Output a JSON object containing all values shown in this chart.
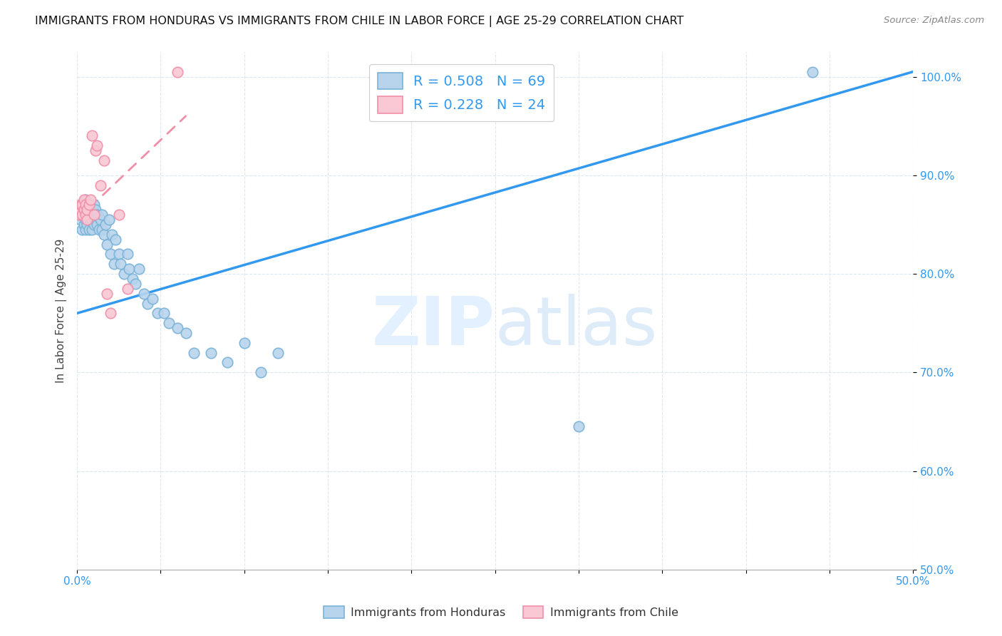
{
  "title": "IMMIGRANTS FROM HONDURAS VS IMMIGRANTS FROM CHILE IN LABOR FORCE | AGE 25-29 CORRELATION CHART",
  "source": "Source: ZipAtlas.com",
  "ylabel_label": "In Labor Force | Age 25-29",
  "xmin": 0.0,
  "xmax": 0.5,
  "ymin": 0.5,
  "ymax": 1.025,
  "blue_color": "#b8d4ec",
  "blue_edge": "#7ab3d8",
  "pink_color": "#f9c8d4",
  "pink_edge": "#f090a8",
  "trendline_blue": "#3399ee",
  "trendline_pink": "#f090a8",
  "watermark_color": "#ddeeff",
  "honduras_x": [
    0.001,
    0.002,
    0.002,
    0.003,
    0.003,
    0.003,
    0.004,
    0.004,
    0.004,
    0.005,
    0.005,
    0.005,
    0.005,
    0.006,
    0.006,
    0.006,
    0.007,
    0.007,
    0.007,
    0.007,
    0.008,
    0.008,
    0.009,
    0.009,
    0.009,
    0.01,
    0.01,
    0.01,
    0.011,
    0.011,
    0.012,
    0.012,
    0.013,
    0.013,
    0.014,
    0.015,
    0.015,
    0.016,
    0.017,
    0.018,
    0.019,
    0.02,
    0.021,
    0.022,
    0.023,
    0.025,
    0.026,
    0.028,
    0.03,
    0.031,
    0.033,
    0.035,
    0.037,
    0.04,
    0.042,
    0.045,
    0.048,
    0.052,
    0.055,
    0.06,
    0.065,
    0.07,
    0.08,
    0.09,
    0.1,
    0.11,
    0.12,
    0.3,
    0.44
  ],
  "honduras_y": [
    0.86,
    0.855,
    0.87,
    0.845,
    0.86,
    0.865,
    0.85,
    0.86,
    0.87,
    0.845,
    0.855,
    0.865,
    0.875,
    0.85,
    0.86,
    0.87,
    0.845,
    0.855,
    0.86,
    0.87,
    0.855,
    0.865,
    0.845,
    0.855,
    0.865,
    0.85,
    0.86,
    0.87,
    0.855,
    0.865,
    0.85,
    0.86,
    0.845,
    0.858,
    0.855,
    0.845,
    0.86,
    0.84,
    0.85,
    0.83,
    0.855,
    0.82,
    0.84,
    0.81,
    0.835,
    0.82,
    0.81,
    0.8,
    0.82,
    0.805,
    0.795,
    0.79,
    0.805,
    0.78,
    0.77,
    0.775,
    0.76,
    0.76,
    0.75,
    0.745,
    0.74,
    0.72,
    0.72,
    0.71,
    0.73,
    0.7,
    0.72,
    0.645,
    1.005
  ],
  "chile_x": [
    0.001,
    0.002,
    0.002,
    0.003,
    0.003,
    0.004,
    0.004,
    0.005,
    0.005,
    0.006,
    0.006,
    0.007,
    0.008,
    0.009,
    0.01,
    0.011,
    0.012,
    0.014,
    0.016,
    0.018,
    0.02,
    0.025,
    0.03,
    0.06
  ],
  "chile_y": [
    0.86,
    0.865,
    0.87,
    0.86,
    0.87,
    0.865,
    0.875,
    0.86,
    0.87,
    0.855,
    0.865,
    0.87,
    0.875,
    0.94,
    0.86,
    0.925,
    0.93,
    0.89,
    0.915,
    0.78,
    0.76,
    0.86,
    0.785,
    1.005
  ],
  "blue_trendline_x0": 0.0,
  "blue_trendline_y0": 0.76,
  "blue_trendline_x1": 0.5,
  "blue_trendline_y1": 1.005,
  "pink_trendline_x0": 0.0,
  "pink_trendline_y0": 0.855,
  "pink_trendline_x1": 0.065,
  "pink_trendline_y1": 0.96
}
